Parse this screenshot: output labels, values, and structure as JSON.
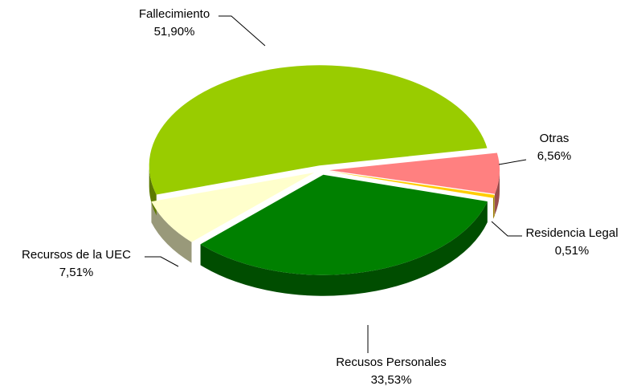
{
  "chart_data": {
    "type": "pie",
    "categories": [
      "Otras",
      "Residencia Legal",
      "Recusos Personales",
      "Recursos de la UEC",
      "Fallecimiento"
    ],
    "values": [
      6.56,
      0.51,
      33.53,
      7.51,
      51.9
    ],
    "value_labels": [
      "6,56%",
      "0,51%",
      "33,53%",
      "7,51%",
      "51,90%"
    ],
    "colors": [
      "#ff8080",
      "#ffcc00",
      "#008000",
      "#ffffcc",
      "#99cc00"
    ]
  }
}
